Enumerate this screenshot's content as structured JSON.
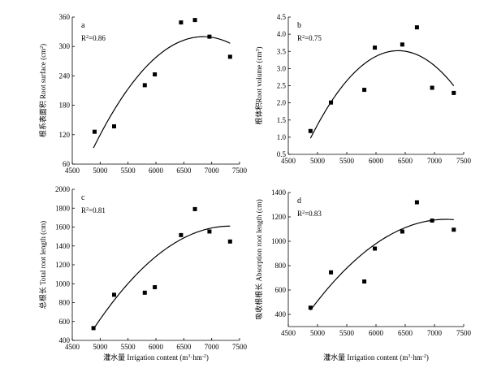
{
  "chart_data": [
    {
      "type": "scatter",
      "panel": "a",
      "ylabel": "根系表面积 Root surface (cm²)",
      "annotation": "R²=0.86",
      "xlim": [
        4500,
        7500
      ],
      "ylim": [
        60,
        360
      ],
      "xticks": [
        4500,
        5000,
        5500,
        6000,
        6500,
        7000,
        7500
      ],
      "yticks": [
        60,
        120,
        180,
        240,
        300,
        360
      ],
      "points": [
        {
          "x": 4900,
          "y": 126
        },
        {
          "x": 5250,
          "y": 137
        },
        {
          "x": 5800,
          "y": 221
        },
        {
          "x": 5980,
          "y": 243
        },
        {
          "x": 6450,
          "y": 349
        },
        {
          "x": 6700,
          "y": 354
        },
        {
          "x": 6960,
          "y": 320
        },
        {
          "x": 7330,
          "y": 279
        }
      ],
      "fit": {
        "type": "quadratic",
        "x_range": [
          4880,
          7330
        ],
        "vertex_x": 6850,
        "vertex_y": 320,
        "y_at_start": 93
      }
    },
    {
      "type": "scatter",
      "panel": "b",
      "ylabel": "根体积Root volume (cm³)",
      "annotation": "R²=0.75",
      "xlim": [
        4500,
        7500
      ],
      "ylim": [
        0.5,
        4.5
      ],
      "xticks": [
        4500,
        5000,
        5500,
        6000,
        6500,
        7000,
        7500
      ],
      "yticks": [
        0.5,
        1.0,
        1.5,
        2.0,
        2.5,
        3.0,
        3.5,
        4.0,
        4.5
      ],
      "points": [
        {
          "x": 4880,
          "y": 1.18
        },
        {
          "x": 5230,
          "y": 2.01
        },
        {
          "x": 5800,
          "y": 2.38
        },
        {
          "x": 5980,
          "y": 3.61
        },
        {
          "x": 6450,
          "y": 3.7
        },
        {
          "x": 6700,
          "y": 4.2
        },
        {
          "x": 6960,
          "y": 2.44
        },
        {
          "x": 7330,
          "y": 2.29
        }
      ],
      "fit": {
        "type": "quadratic",
        "x_range": [
          4880,
          7330
        ],
        "vertex_x": 6380,
        "vertex_y": 3.52,
        "y_at_start": 0.97
      }
    },
    {
      "type": "scatter",
      "panel": "c",
      "ylabel": "总根长 Total root length (cm)",
      "annotation": "R²=0.81",
      "xlim": [
        4500,
        7500
      ],
      "ylim": [
        400,
        2000
      ],
      "xticks": [
        4500,
        5000,
        5500,
        6000,
        6500,
        7000,
        7500
      ],
      "yticks": [
        400,
        600,
        800,
        1000,
        1200,
        1400,
        1600,
        1800,
        2000
      ],
      "points": [
        {
          "x": 4880,
          "y": 530
        },
        {
          "x": 5250,
          "y": 883
        },
        {
          "x": 5800,
          "y": 905
        },
        {
          "x": 5980,
          "y": 963
        },
        {
          "x": 6450,
          "y": 1515
        },
        {
          "x": 6700,
          "y": 1790
        },
        {
          "x": 6960,
          "y": 1553
        },
        {
          "x": 7330,
          "y": 1447
        }
      ],
      "fit": {
        "type": "quadratic",
        "x_range": [
          4880,
          7330
        ],
        "vertex_x": 7330,
        "vertex_y": 1610,
        "y_at_start": 520
      }
    },
    {
      "type": "scatter",
      "panel": "d",
      "ylabel": "吸收根根长 Absorption root length (cm)",
      "annotation": "R²=0.83",
      "xlim": [
        4500,
        7500
      ],
      "ylim": [
        300,
        1400
      ],
      "xticks": [
        4500,
        5000,
        5500,
        6000,
        6500,
        7000,
        7500
      ],
      "yticks": [
        400,
        600,
        800,
        1000,
        1200,
        1400
      ],
      "points": [
        {
          "x": 4880,
          "y": 455
        },
        {
          "x": 5230,
          "y": 745
        },
        {
          "x": 5800,
          "y": 670
        },
        {
          "x": 5980,
          "y": 940
        },
        {
          "x": 6450,
          "y": 1080
        },
        {
          "x": 6700,
          "y": 1320
        },
        {
          "x": 6960,
          "y": 1170
        },
        {
          "x": 7330,
          "y": 1095
        }
      ],
      "fit": {
        "type": "quadratic",
        "x_range": [
          4880,
          7330
        ],
        "vertex_x": 7200,
        "vertex_y": 1180,
        "y_at_start": 435
      }
    }
  ],
  "xaxis_title": "灌水量 Irrigation content (m³·hm⁻²)"
}
